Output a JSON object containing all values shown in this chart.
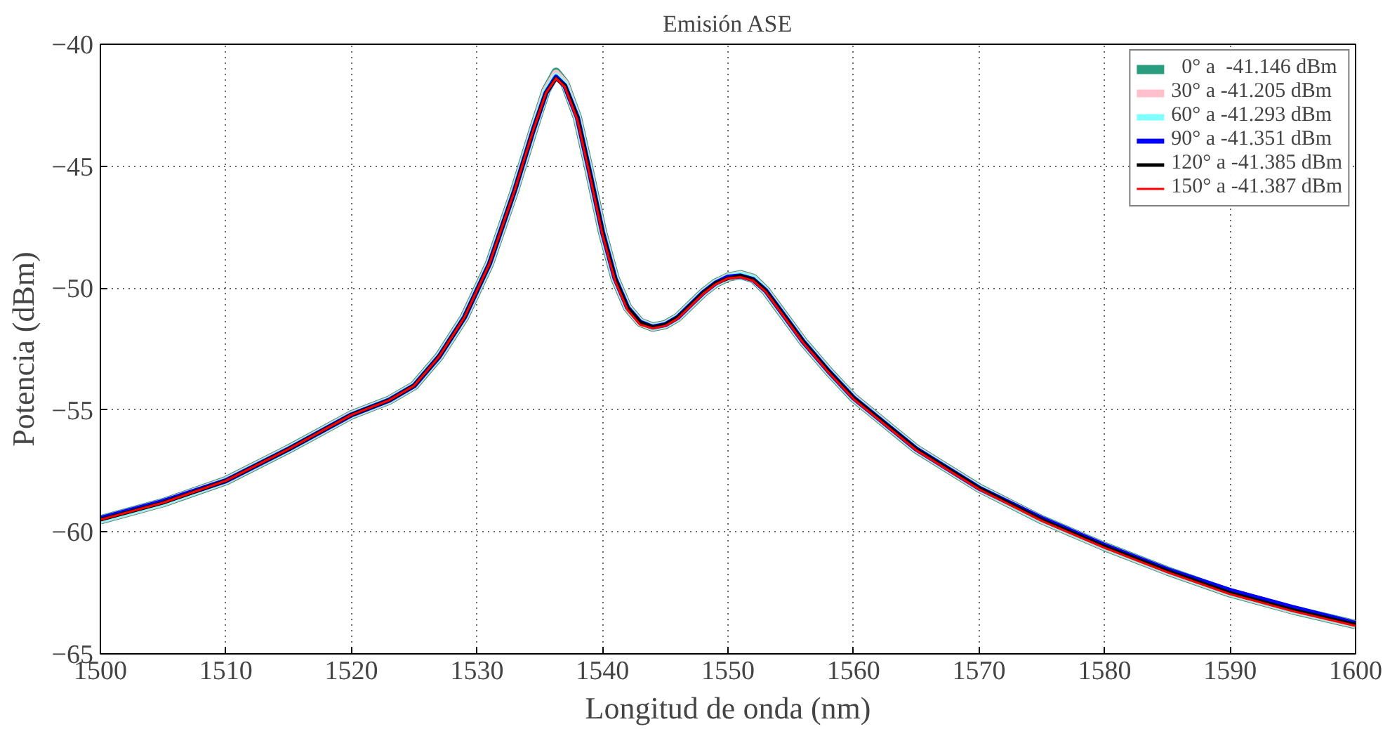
{
  "chart_data": {
    "type": "line",
    "title": "Emisión ASE",
    "xlabel": "Longitud de onda (nm)",
    "ylabel": "Potencia (dBm)",
    "x": [
      1500,
      1505,
      1510,
      1515,
      1520,
      1523,
      1525,
      1527,
      1529,
      1531,
      1533,
      1534.5,
      1535.5,
      1536.3,
      1537,
      1538,
      1539,
      1540,
      1541,
      1542,
      1543,
      1544,
      1545,
      1546,
      1547,
      1548,
      1549,
      1550,
      1551,
      1552,
      1553,
      1554,
      1556,
      1558,
      1560,
      1565,
      1570,
      1575,
      1580,
      1585,
      1590,
      1595,
      1600
    ],
    "series": [
      {
        "name": "  0° a  -41.146 dBm",
        "color": "#2a9d7f",
        "values": [
          -59.5,
          -58.8,
          -57.9,
          -56.6,
          -55.2,
          -54.6,
          -54.0,
          -52.8,
          -51.2,
          -49.0,
          -46.0,
          -43.5,
          -41.9,
          -41.15,
          -41.6,
          -43.0,
          -45.3,
          -47.7,
          -49.6,
          -50.8,
          -51.4,
          -51.6,
          -51.5,
          -51.2,
          -50.7,
          -50.2,
          -49.8,
          -49.55,
          -49.45,
          -49.6,
          -50.1,
          -50.8,
          -52.2,
          -53.4,
          -54.5,
          -56.6,
          -58.2,
          -59.5,
          -60.6,
          -61.6,
          -62.5,
          -63.2,
          -63.8
        ]
      },
      {
        "name": "30° a -41.205 dBm",
        "color": "#ffc0cb",
        "values": [
          -59.5,
          -58.8,
          -57.9,
          -56.6,
          -55.2,
          -54.6,
          -54.0,
          -52.8,
          -51.2,
          -49.0,
          -46.0,
          -43.5,
          -41.9,
          -41.2,
          -41.6,
          -43.0,
          -45.3,
          -47.7,
          -49.6,
          -50.8,
          -51.4,
          -51.6,
          -51.5,
          -51.2,
          -50.7,
          -50.2,
          -49.8,
          -49.55,
          -49.45,
          -49.6,
          -50.1,
          -50.8,
          -52.2,
          -53.4,
          -54.5,
          -56.6,
          -58.2,
          -59.5,
          -60.6,
          -61.6,
          -62.5,
          -63.2,
          -63.8
        ]
      },
      {
        "name": "60° a -41.293 dBm",
        "color": "#80ffff",
        "values": [
          -59.5,
          -58.8,
          -57.9,
          -56.6,
          -55.2,
          -54.6,
          -54.0,
          -52.8,
          -51.2,
          -49.0,
          -46.0,
          -43.5,
          -41.95,
          -41.3,
          -41.65,
          -43.0,
          -45.3,
          -47.7,
          -49.6,
          -50.8,
          -51.4,
          -51.6,
          -51.5,
          -51.2,
          -50.7,
          -50.2,
          -49.8,
          -49.55,
          -49.45,
          -49.6,
          -50.1,
          -50.8,
          -52.2,
          -53.4,
          -54.5,
          -56.6,
          -58.2,
          -59.5,
          -60.6,
          -61.6,
          -62.5,
          -63.2,
          -63.8
        ]
      },
      {
        "name": "90° a -41.351 dBm",
        "color": "#0000ff",
        "values": [
          -59.45,
          -58.75,
          -57.9,
          -56.6,
          -55.2,
          -54.6,
          -54.0,
          -52.8,
          -51.2,
          -49.0,
          -46.0,
          -43.5,
          -42.0,
          -41.35,
          -41.7,
          -43.0,
          -45.3,
          -47.7,
          -49.6,
          -50.8,
          -51.4,
          -51.6,
          -51.5,
          -51.2,
          -50.7,
          -50.2,
          -49.8,
          -49.55,
          -49.5,
          -49.65,
          -50.1,
          -50.8,
          -52.2,
          -53.4,
          -54.5,
          -56.6,
          -58.2,
          -59.45,
          -60.55,
          -61.55,
          -62.4,
          -63.1,
          -63.75
        ]
      },
      {
        "name": "120° a -41.385 dBm",
        "color": "#000000",
        "values": [
          -59.5,
          -58.8,
          -57.9,
          -56.6,
          -55.2,
          -54.6,
          -54.0,
          -52.8,
          -51.2,
          -49.0,
          -46.0,
          -43.5,
          -42.0,
          -41.4,
          -41.7,
          -43.0,
          -45.3,
          -47.7,
          -49.6,
          -50.8,
          -51.4,
          -51.6,
          -51.5,
          -51.2,
          -50.7,
          -50.2,
          -49.8,
          -49.6,
          -49.5,
          -49.65,
          -50.1,
          -50.8,
          -52.2,
          -53.4,
          -54.5,
          -56.6,
          -58.2,
          -59.5,
          -60.6,
          -61.6,
          -62.5,
          -63.2,
          -63.8
        ]
      },
      {
        "name": "150° a -41.387 dBm",
        "color": "#ff0000",
        "values": [
          -59.5,
          -58.8,
          -57.9,
          -56.6,
          -55.2,
          -54.6,
          -54.0,
          -52.8,
          -51.2,
          -49.0,
          -46.0,
          -43.5,
          -42.0,
          -41.4,
          -41.75,
          -43.1,
          -45.4,
          -47.8,
          -49.7,
          -50.9,
          -51.5,
          -51.65,
          -51.55,
          -51.25,
          -50.75,
          -50.25,
          -49.85,
          -49.6,
          -49.55,
          -49.7,
          -50.15,
          -50.85,
          -52.25,
          -53.45,
          -54.55,
          -56.65,
          -58.25,
          -59.55,
          -60.65,
          -61.65,
          -62.55,
          -63.25,
          -63.85
        ]
      }
    ],
    "xlim": [
      1500,
      1600
    ],
    "xticks": [
      1500,
      1510,
      1520,
      1530,
      1540,
      1550,
      1560,
      1570,
      1580,
      1590,
      1600
    ],
    "ylim": [
      -65,
      -40
    ],
    "yticks": [
      -65,
      -60,
      -55,
      -50,
      -45,
      -40
    ],
    "grid": true,
    "legend": "top right",
    "marker": "none",
    "line_style": "solid"
  }
}
